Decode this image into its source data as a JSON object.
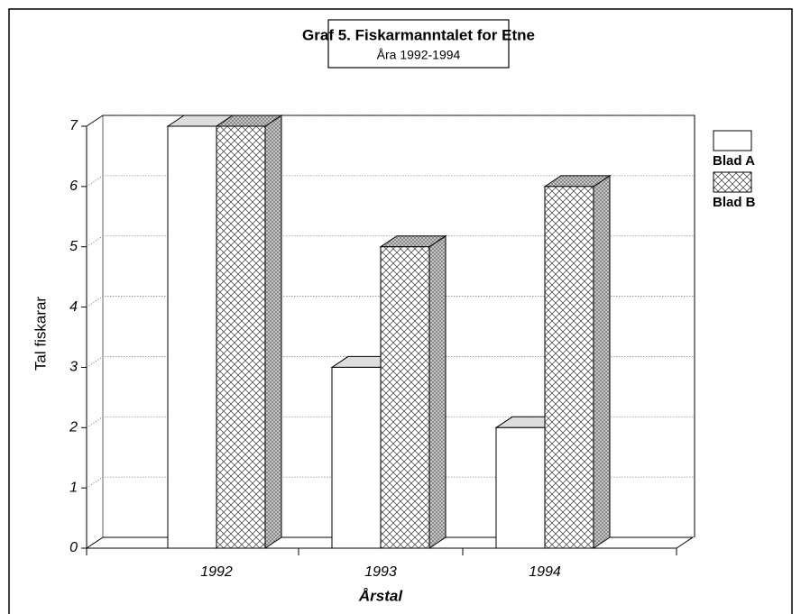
{
  "chart_data": {
    "type": "bar3d",
    "title": "Graf 5. Fiskarmanntalet for Etne",
    "subtitle": "Åra 1992-1994",
    "x_label": "Årstal",
    "y_label": "Tal fiskarar",
    "categories": [
      "1992",
      "1993",
      "1994"
    ],
    "series": [
      {
        "name": "Blad A",
        "color": "#ffffff",
        "values": [
          7,
          3,
          2
        ]
      },
      {
        "name": "Blad B",
        "color": "#ffffff",
        "pattern": "crosshatch",
        "values": [
          7,
          5,
          6
        ]
      }
    ],
    "ylim": [
      0,
      7
    ],
    "yticks": [
      0,
      1,
      2,
      3,
      4,
      5,
      6,
      7
    ],
    "grid": true,
    "legend": "right"
  }
}
